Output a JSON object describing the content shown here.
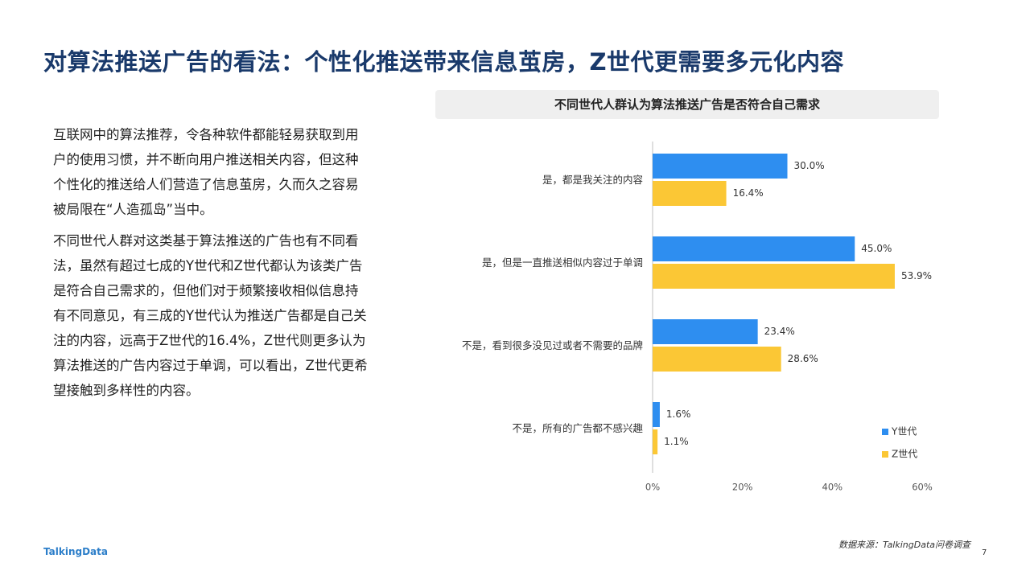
{
  "title": "对算法推送广告的看法：个性化推送带来信息茧房，Z世代更需要多元化内容",
  "paragraphs": [
    "互联网中的算法推荐，令各种软件都能轻易获取到用户的使用习惯，并不断向用户推送相关内容，但这种个性化的推送给人们营造了信息茧房，久而久之容易被局限在“人造孤岛”当中。",
    "不同世代人群对这类基于算法推送的广告也有不同看法，虽然有超过七成的Y世代和Z世代都认为该类广告是符合自己需求的，但他们对于频繁接收相似信息持有不同意见，有三成的Y世代认为推送广告都是自己关注的内容，远高于Z世代的16.4%，Z世代则更多认为算法推送的广告内容过于单调，可以看出，Z世代更希望接触到多样性的内容。"
  ],
  "footer": {
    "logo": "TalkingData",
    "source": "数据来源：TalkingData问卷调查",
    "page": "7"
  },
  "chart_data": {
    "type": "bar",
    "orientation": "horizontal",
    "title": "不同世代人群认为算法推送广告是否符合自己需求",
    "categories": [
      "是，都是我关注的内容",
      "是，但是一直推送相似内容过于单调",
      "不是，看到很多没见过或者不需要的品牌",
      "不是，所有的广告都不感兴趣"
    ],
    "series": [
      {
        "name": "Y世代",
        "values": [
          30.0,
          45.0,
          23.4,
          1.6
        ],
        "color": "#2e8ef0"
      },
      {
        "name": "Z世代",
        "values": [
          16.4,
          53.9,
          28.6,
          1.1
        ],
        "color": "#fbc735"
      }
    ],
    "value_labels": [
      [
        "30.0%",
        "45.0%",
        "23.4%",
        "1.6%"
      ],
      [
        "16.4%",
        "53.9%",
        "28.6%",
        "1.1%"
      ]
    ],
    "xlim": [
      0,
      60
    ],
    "xticks": [
      "0%",
      "20%",
      "40%",
      "60%"
    ],
    "grid": false,
    "legend_position": "bottom-right"
  }
}
